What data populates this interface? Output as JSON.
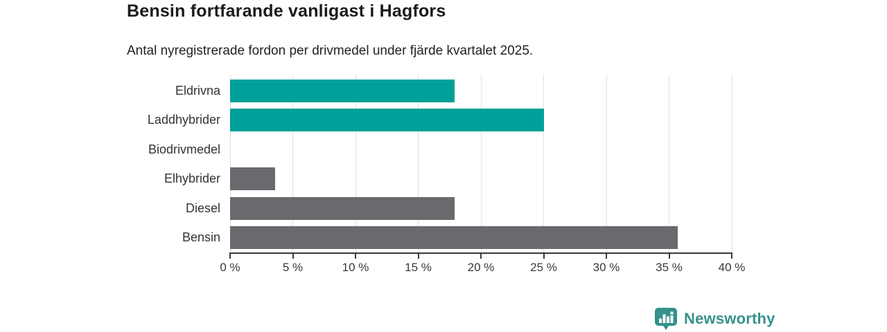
{
  "header": {
    "title": "Bensin fortfarande vanligast i Hagfors",
    "subtitle": "Antal nyregistrerade fordon per drivmedel under fjärde kvartalet 2025."
  },
  "chart_data": {
    "type": "bar",
    "orientation": "horizontal",
    "title": "Bensin fortfarande vanligast i Hagfors",
    "subtitle": "Antal nyregistrerade fordon per drivmedel under fjärde kvartalet 2025.",
    "categories": [
      "Eldrivna",
      "Laddhybrider",
      "Biodrivmedel",
      "Elhybrider",
      "Diesel",
      "Bensin"
    ],
    "values": [
      17.9,
      25.0,
      0,
      3.6,
      17.9,
      35.7
    ],
    "unit": "%",
    "bar_colors": [
      "#00a09a",
      "#00a09a",
      "#6b696d",
      "#6b696d",
      "#6b696d",
      "#6b696d"
    ],
    "xlim": [
      0,
      40
    ],
    "x_ticks": [
      0,
      5,
      10,
      15,
      20,
      25,
      30,
      35,
      40
    ],
    "x_tick_labels": [
      "0 %",
      "5 %",
      "10 %",
      "15 %",
      "20 %",
      "25 %",
      "30 %",
      "35 %",
      "40 %"
    ],
    "xlabel": "",
    "ylabel": "",
    "grid": true,
    "legend": false
  },
  "footer": {
    "brand": "Newsworthy"
  },
  "colors": {
    "highlight_teal": "#00a09a",
    "neutral_gray": "#6b696d",
    "axis": "#3a3a3a",
    "gridline": "#e0e0e0",
    "brand_teal": "#35918c",
    "text_dark": "#1b1b1b"
  }
}
